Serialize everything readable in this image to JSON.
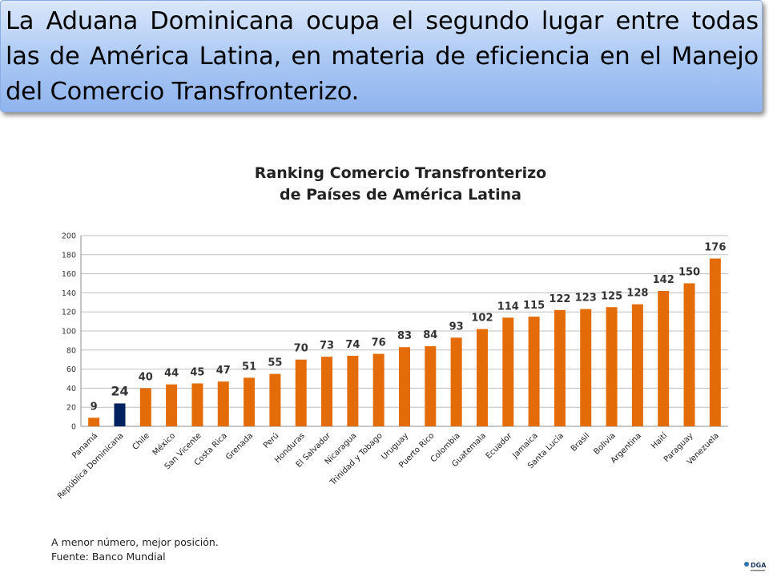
{
  "banner": {
    "text": "La Aduana Dominicana ocupa el segundo lugar entre todas las de América Latina, en materia de eficiencia en el Manejo del Comercio Transfronterizo."
  },
  "chart_title": {
    "line1": "Ranking Comercio Transfronterizo",
    "line2": "de Países de América Latina"
  },
  "footnote": {
    "line1": "A menor número, mejor posición.",
    "line2": "Fuente: Banco Mundial"
  },
  "logo": {
    "label": "DGA"
  },
  "colors": {
    "bar": "#E36C09",
    "highlight": "#002060",
    "grid": "#bfbfbf",
    "axis": "#8c8c8c"
  },
  "chart_data": {
    "type": "bar",
    "title": "Ranking Comercio Transfronterizo de Países de América Latina",
    "xlabel": "",
    "ylabel": "",
    "ylim": [
      0,
      200
    ],
    "yticks": [
      0,
      20,
      40,
      60,
      80,
      100,
      120,
      140,
      160,
      180,
      200
    ],
    "grid": true,
    "highlight_category": "República Dominicana",
    "categories": [
      "Panamá",
      "República Dominicana",
      "Chile",
      "México",
      "San Vicente",
      "Costa Rica",
      "Grenada",
      "Perú",
      "Honduras",
      "El Salvador",
      "Nicaragua",
      "Trinidad y Tobago",
      "Uruguay",
      "Puerto Rico",
      "Colombia",
      "Guatemala",
      "Ecuador",
      "Jamaica",
      "Santa Lucía",
      "Brasil",
      "Bolivia",
      "Argentina",
      "Haití",
      "Paraguay",
      "Venezuela"
    ],
    "values": [
      9,
      24,
      40,
      44,
      45,
      47,
      51,
      55,
      70,
      73,
      74,
      76,
      83,
      84,
      93,
      102,
      114,
      115,
      122,
      123,
      125,
      128,
      142,
      150,
      176
    ]
  }
}
